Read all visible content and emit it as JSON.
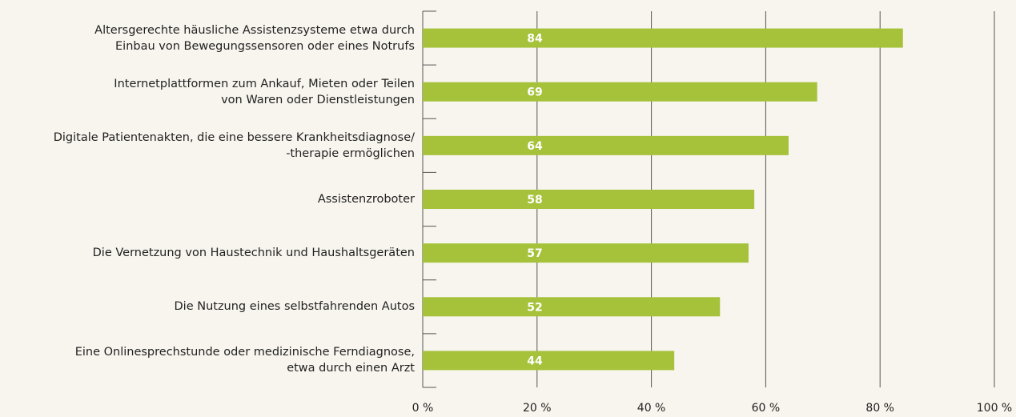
{
  "chart_data": {
    "type": "barh",
    "categories": [
      "Altersgerechte häusliche Assistenzsysteme etwa durch\nEinbau von Bewegungssensoren oder eines Notrufs",
      "Internetplattformen zum Ankauf, Mieten oder Teilen\nvon Waren oder Dienstleistungen",
      "Digitale Patientenakten, die eine bessere Krankheitsdiagnose/\n-therapie ermöglichen",
      "Assistenzroboter",
      "Die Vernetzung von Haustechnik und Haushaltsgeräten",
      "Die Nutzung eines selbstfahrenden Autos",
      "Eine Onlinesprechstunde oder medizinische Ferndiagnose,\netwa durch einen Arzt"
    ],
    "values": [
      84,
      69,
      64,
      58,
      57,
      52,
      44
    ],
    "color": "#a5c23a",
    "xlim": [
      0,
      100
    ],
    "xticks": [
      {
        "value": 0,
        "label": "0 %"
      },
      {
        "value": 20,
        "label": "20 %"
      },
      {
        "value": 40,
        "label": "40 %"
      },
      {
        "value": 60,
        "label": "60 %"
      },
      {
        "value": 80,
        "label": "80 %"
      },
      {
        "value": 100,
        "label": "100 %"
      }
    ],
    "grid": true
  }
}
